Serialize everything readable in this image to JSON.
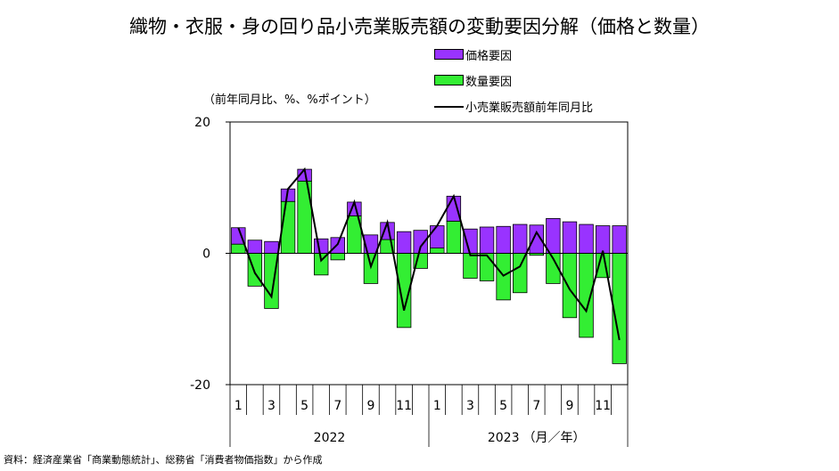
{
  "title": "織物・衣服・身の回り品小売業販売額の変動要因分解（価格と数量）",
  "unit_label": "（前年同月比、%、%ポイント）",
  "source": "資料：経済産業省「商業動態統計」、総務省「消費者物価指数」から作成",
  "colors": {
    "price": "#9933ff",
    "quantity": "#33ee33",
    "line": "#000000"
  },
  "chart_data": {
    "type": "bar",
    "stacked": true,
    "ylim": [
      -20,
      20
    ],
    "yticks": [
      20,
      0,
      -20
    ],
    "month_labels": [
      "1",
      "",
      "3",
      "",
      "5",
      "",
      "7",
      "",
      "9",
      "",
      "11",
      "",
      "1",
      "",
      "3",
      "",
      "5",
      "",
      "7",
      "",
      "9",
      "",
      "11",
      ""
    ],
    "year_labels": [
      "2022",
      "2023"
    ],
    "x_suffix": "（月／年）",
    "series": [
      {
        "name": "価格要因",
        "values": [
          2.5,
          2.0,
          1.8,
          1.9,
          1.8,
          2.2,
          2.4,
          2.1,
          2.8,
          2.6,
          3.3,
          3.5,
          3.4,
          3.8,
          3.7,
          4.0,
          4.1,
          4.4,
          4.3,
          5.3,
          4.8,
          4.4,
          4.2,
          4.2
        ]
      },
      {
        "name": "数量要因",
        "values": [
          1.4,
          -5.0,
          -8.4,
          7.9,
          11.0,
          -3.3,
          -1.0,
          5.7,
          -4.6,
          2.1,
          -11.3,
          -2.3,
          0.8,
          4.9,
          -3.8,
          -4.2,
          -7.1,
          -6.0,
          -0.3,
          -4.6,
          -9.8,
          -12.8,
          -3.7,
          -16.8
        ]
      },
      {
        "name": "小売業販売額前年同月比",
        "values": [
          3.9,
          -3.0,
          -6.6,
          9.8,
          12.8,
          -1.1,
          1.4,
          7.8,
          -2.0,
          4.7,
          -8.7,
          1.0,
          4.2,
          8.7,
          -0.3,
          -0.3,
          -3.4,
          -2.0,
          3.2,
          -0.8,
          -5.5,
          -8.8,
          0.4,
          -13.2
        ]
      }
    ]
  }
}
